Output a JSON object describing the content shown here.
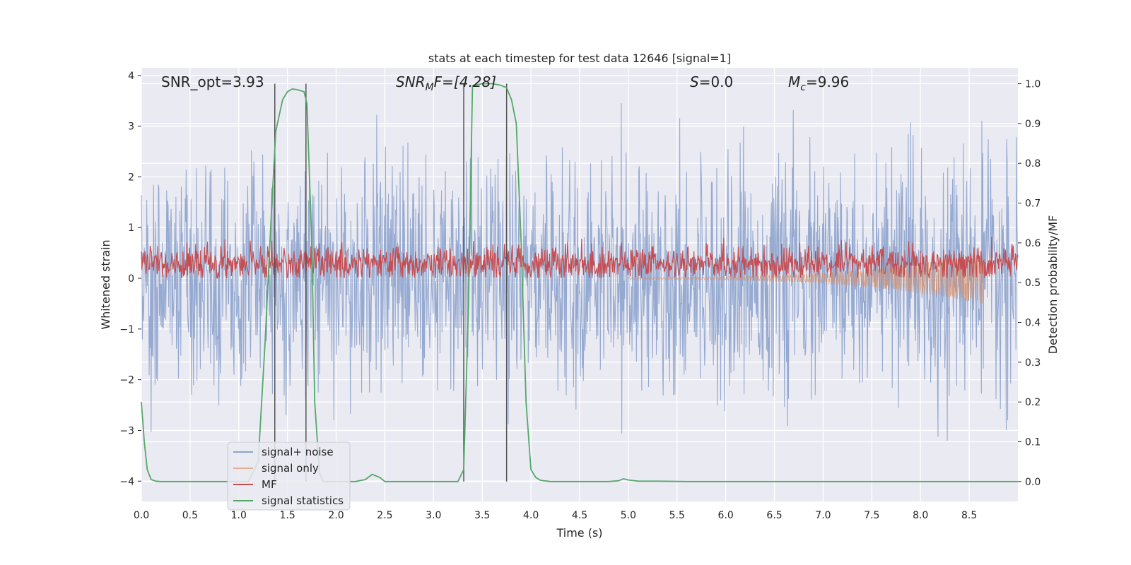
{
  "chart_data": {
    "type": "line",
    "title": "stats at each timestep for test data 12646 [signal=1]",
    "xlabel": "Time (s)",
    "ylabel": "Whitened strain",
    "y2label": "Detection probability/MF",
    "xlim": [
      0.0,
      9.0
    ],
    "ylim": [
      -4.4,
      4.15
    ],
    "y2lim": [
      -0.05,
      1.04
    ],
    "x_ticks": [
      "0.0",
      "0.5",
      "1.0",
      "1.5",
      "2.0",
      "2.5",
      "3.0",
      "3.5",
      "4.0",
      "4.5",
      "5.0",
      "5.5",
      "6.0",
      "6.5",
      "7.0",
      "7.5",
      "8.0",
      "8.5"
    ],
    "y_ticks": [
      "4",
      "3",
      "2",
      "1",
      "0",
      "−1",
      "−2",
      "−3",
      "−4"
    ],
    "y2_ticks": [
      "1.0",
      "0.9",
      "0.8",
      "0.7",
      "0.6",
      "0.5",
      "0.4",
      "0.3",
      "0.2",
      "0.1",
      "0.0"
    ],
    "grid": true,
    "legend_position": "lower-left",
    "annotations": {
      "snr_opt": "SNR_opt=3.93",
      "snr_mf_main": "SNR",
      "snr_mf_sub": "M",
      "snr_mf_rest": "F=[4.28]",
      "s_main": "S",
      "s_rest": "=0.0",
      "mc_main": "M",
      "mc_sub": "c",
      "mc_rest": "=9.96"
    },
    "detection_windows": [
      [
        1.37,
        1.69
      ],
      [
        3.31,
        3.75
      ]
    ],
    "series": [
      {
        "name": "signal+ noise",
        "color": "#8da3cd",
        "amplitude_envelope": [
          -3.9,
          3.6
        ]
      },
      {
        "name": "signal only",
        "color": "#dd8452",
        "chirp_end": 8.65,
        "min_value": -0.5
      },
      {
        "name": "MF",
        "color": "#c44e52",
        "range": [
          0.0,
          0.95
        ]
      },
      {
        "name": "signal statistics",
        "color": "#55a868",
        "axis": "right",
        "x": [
          0.0,
          0.03,
          0.06,
          0.1,
          0.15,
          0.2,
          0.3,
          0.5,
          0.8,
          1.0,
          1.1,
          1.2,
          1.27,
          1.33,
          1.38,
          1.45,
          1.5,
          1.55,
          1.6,
          1.67,
          1.7,
          1.75,
          1.78,
          1.83,
          1.87,
          2.0,
          2.2,
          2.3,
          2.37,
          2.45,
          2.5,
          2.6,
          3.0,
          3.25,
          3.31,
          3.36,
          3.4,
          3.5,
          3.6,
          3.68,
          3.75,
          3.8,
          3.85,
          3.9,
          3.95,
          4.0,
          4.05,
          4.1,
          4.2,
          4.5,
          4.8,
          4.9,
          4.95,
          5.0,
          5.1,
          5.3,
          5.6,
          6.0,
          7.0,
          8.0,
          9.0
        ],
        "y": [
          0.2,
          0.1,
          0.03,
          0.005,
          0.001,
          0.0,
          0.0,
          0.0,
          0.0,
          0.0,
          0.0,
          0.05,
          0.35,
          0.65,
          0.88,
          0.96,
          0.98,
          0.987,
          0.985,
          0.98,
          0.95,
          0.6,
          0.2,
          0.02,
          0.0,
          0.0,
          0.0,
          0.005,
          0.018,
          0.01,
          0.0,
          0.0,
          0.0,
          0.0,
          0.03,
          0.45,
          0.995,
          1.0,
          1.0,
          0.997,
          0.99,
          0.96,
          0.9,
          0.6,
          0.2,
          0.03,
          0.01,
          0.003,
          0.0,
          0.0,
          0.0,
          0.002,
          0.007,
          0.004,
          0.001,
          0.001,
          0.0,
          0.0,
          0.0,
          0.0,
          0.0
        ]
      }
    ]
  }
}
